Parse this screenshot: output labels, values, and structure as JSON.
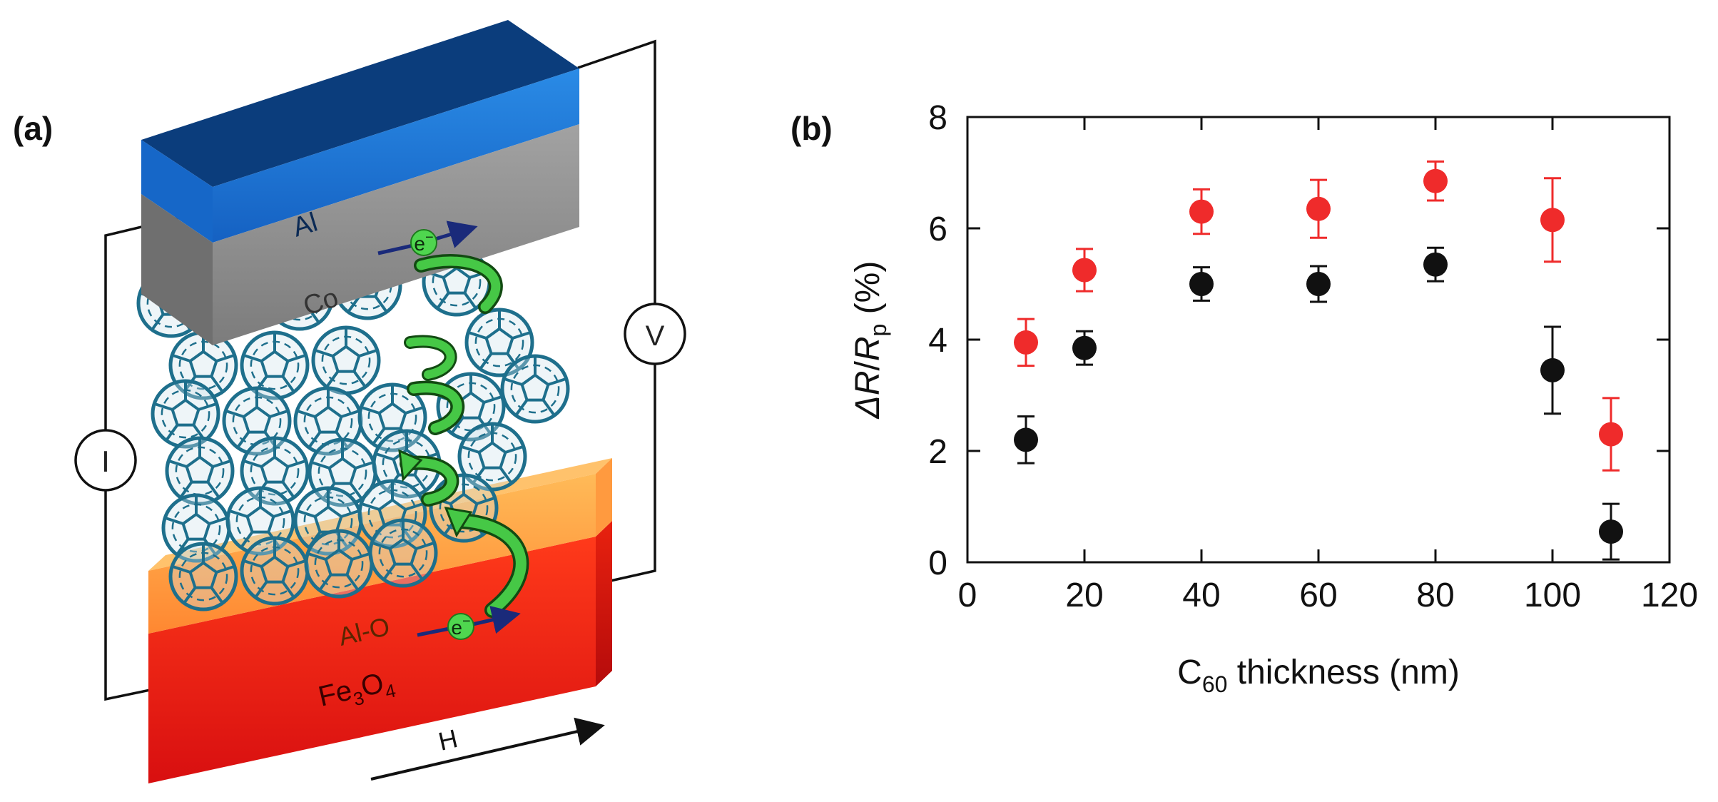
{
  "panel_a": {
    "label": "(a)",
    "layers": {
      "al": "Al",
      "co": "Co",
      "alo": "Al-O",
      "fe3o4": {
        "base": "Fe",
        "sub1": "3",
        "mid": "O",
        "sub2": "4"
      }
    },
    "electron_label": "e",
    "electron_sign": "−",
    "meter_current": "I",
    "meter_voltage": "V",
    "field_label": "H",
    "colors": {
      "al": "#1c6fd1",
      "al_top": "#0a3f82",
      "co": "#8e8e8e",
      "fe3o4": "#e01818",
      "alo": "#ff8a1c",
      "c60": "#1e6f8c",
      "arrow": "#3cc23c",
      "electron": "#4fd64f"
    }
  },
  "panel_b": {
    "label": "(b)",
    "ylabel": {
      "delta": "Δ",
      "r": "R",
      "slash": "/",
      "rp": "R",
      "sub": "p",
      "unit": " (%)"
    },
    "xlabel": {
      "c": "C",
      "sub": "60",
      "rest": " thickness (nm)"
    }
  },
  "chart_data": {
    "type": "scatter",
    "xlabel": "C60 thickness (nm)",
    "ylabel": "ΔR/Rp (%)",
    "xlim": [
      0,
      120
    ],
    "ylim": [
      0,
      8
    ],
    "xticks": [
      0,
      20,
      40,
      60,
      80,
      100,
      120
    ],
    "yticks": [
      0,
      2,
      4,
      6,
      8
    ],
    "series": [
      {
        "name": "red",
        "color": "#ef2b2b",
        "x": [
          10,
          20,
          40,
          60,
          80,
          100,
          110
        ],
        "y": [
          3.95,
          5.25,
          6.3,
          6.35,
          6.85,
          6.15,
          2.3
        ],
        "err": [
          0.42,
          0.38,
          0.4,
          0.52,
          0.35,
          0.75,
          0.65
        ]
      },
      {
        "name": "black",
        "color": "#111111",
        "x": [
          10,
          20,
          40,
          60,
          80,
          100,
          110
        ],
        "y": [
          2.2,
          3.85,
          5.0,
          5.0,
          5.35,
          3.45,
          0.55
        ],
        "err": [
          0.42,
          0.3,
          0.3,
          0.32,
          0.3,
          0.78,
          0.5
        ]
      }
    ]
  }
}
